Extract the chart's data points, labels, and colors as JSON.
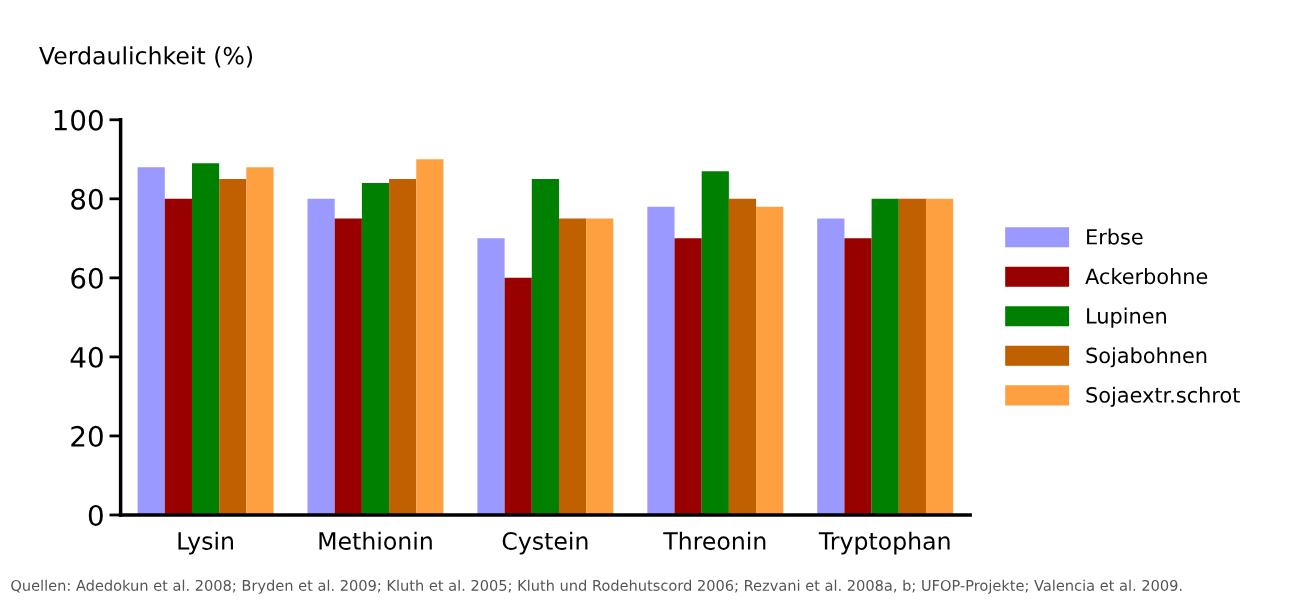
{
  "chart_data": {
    "type": "bar",
    "ylabel": "Verdaulichkeit (%)",
    "categories": [
      "Lysin",
      "Methionin",
      "Cystein",
      "Threonin",
      "Tryptophan"
    ],
    "series": [
      {
        "name": "Erbse",
        "color": "#9999ff",
        "values": [
          88,
          80,
          70,
          78,
          75
        ]
      },
      {
        "name": "Ackerbohne",
        "color": "#990000",
        "values": [
          80,
          75,
          60,
          70,
          70
        ]
      },
      {
        "name": "Lupinen",
        "color": "#008000",
        "values": [
          89,
          84,
          85,
          87,
          80
        ]
      },
      {
        "name": "Sojabohnen",
        "color": "#c06000",
        "values": [
          85,
          85,
          75,
          80,
          80
        ]
      },
      {
        "name": "Sojaextr.schrot",
        "color": "#ffa040",
        "values": [
          88,
          90,
          75,
          78,
          80
        ]
      }
    ],
    "ylim": [
      0,
      100
    ],
    "yticks": [
      0,
      20,
      40,
      60,
      80,
      100
    ],
    "grid": false,
    "legend": "right",
    "annotations": [
      "Quellen: Adedokun et al. 2008; Bryden et al. 2009; Kluth et al. 2005; Kluth und Rodehutscord 2006; Rezvani et al. 2008a, b; UFOP-Projekte; Valencia et al. 2009."
    ]
  }
}
